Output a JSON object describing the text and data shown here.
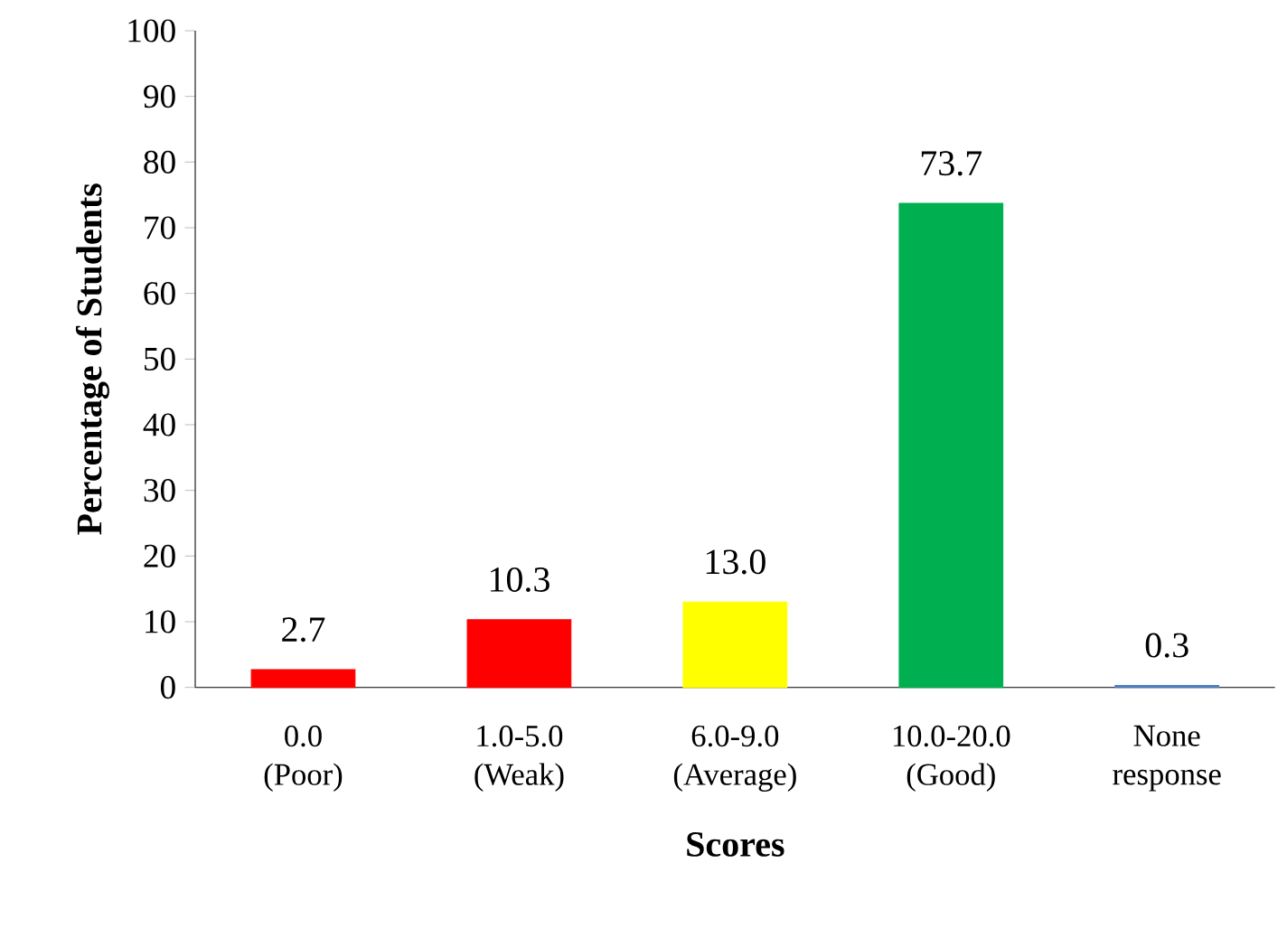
{
  "chart_data": {
    "type": "bar",
    "xlabel": "Scores",
    "ylabel": "Percentage of Students",
    "categories": [
      "0.0 (Poor)",
      "1.0-5.0 (Weak)",
      "6.0-9.0 (Average)",
      "10.0-20.0 (Good)",
      "None response"
    ],
    "values": [
      2.7,
      10.3,
      13.0,
      73.7,
      0.3
    ],
    "colors": [
      "#ff0000",
      "#ff0000",
      "#ffff00",
      "#00b050",
      "#4f81bd"
    ],
    "ylim": [
      0,
      100
    ],
    "yticks": [
      0,
      10,
      20,
      30,
      40,
      50,
      60,
      70,
      80,
      90,
      100
    ],
    "value_labels": [
      "2.7",
      "10.3",
      "13.0",
      "73.7",
      "0.3"
    ]
  }
}
